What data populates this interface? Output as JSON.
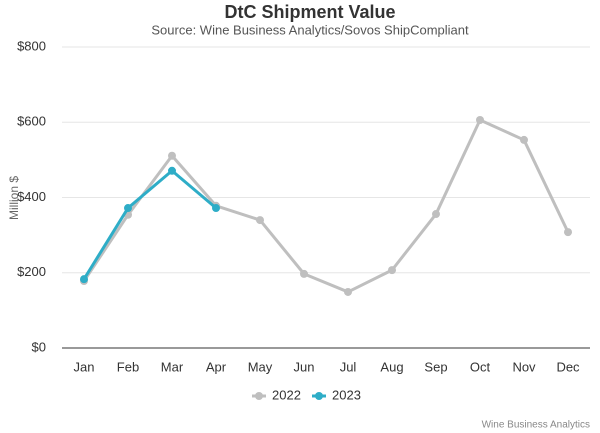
{
  "chart_data": {
    "type": "line",
    "title": "DtC Shipment Value",
    "subtitle": "Source: Wine Business Analytics/Sovos ShipCompliant",
    "y_label": "Million $",
    "credit": "Wine Business Analytics",
    "categories": [
      "Jan",
      "Feb",
      "Mar",
      "Apr",
      "May",
      "Jun",
      "Jul",
      "Aug",
      "Sep",
      "Oct",
      "Nov",
      "Dec"
    ],
    "series": [
      {
        "name": "2022",
        "color": "#bfbfbf",
        "values": [
          178,
          354,
          511,
          378,
          340,
          197,
          149,
          207,
          356,
          606,
          553,
          308
        ]
      },
      {
        "name": "2023",
        "color": "#2eadc7",
        "values": [
          183,
          372,
          471,
          372,
          null,
          null,
          null,
          null,
          null,
          null,
          null,
          null
        ]
      }
    ],
    "ylim": [
      0,
      800
    ],
    "yticks": [
      {
        "value": 0,
        "label": "$0"
      },
      {
        "value": 200,
        "label": "$200"
      },
      {
        "value": 400,
        "label": "$400"
      },
      {
        "value": 600,
        "label": "$600"
      },
      {
        "value": 800,
        "label": "$800"
      }
    ],
    "grid": true,
    "legend": "bottom"
  }
}
